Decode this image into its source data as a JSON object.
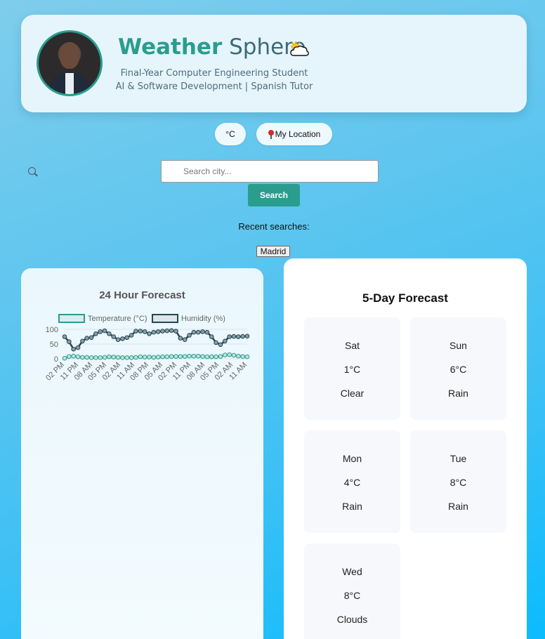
{
  "header": {
    "title_bold": "Weather",
    "title_light": "Sphere",
    "subtitle_line1": "Final-Year Computer Engineering Student",
    "subtitle_line2": "AI & Software Development | Spanish Tutor"
  },
  "controls": {
    "unit_label": "°C",
    "location_label": "My Location"
  },
  "search": {
    "placeholder": "Search city...",
    "button_label": "Search"
  },
  "recent": {
    "label": "Recent searches:",
    "items": [
      "Madrid"
    ]
  },
  "hourly": {
    "title": "24 Hour Forecast"
  },
  "chart_data": {
    "type": "line",
    "title": "24 Hour Forecast",
    "x_tick_labels": [
      "02 PM",
      "11 PM",
      "08 AM",
      "05 PM",
      "02 AM",
      "11 AM",
      "08 PM",
      "05 AM",
      "02 PM",
      "11 PM",
      "08 AM",
      "05 PM",
      "02 AM",
      "11 AM"
    ],
    "ylim": [
      0,
      100
    ],
    "y_ticks": [
      0,
      50,
      100
    ],
    "legend_position": "top",
    "grid": true,
    "series": [
      {
        "name": "Temperature (°C)",
        "color": "#2a9d8f",
        "values": [
          2,
          8,
          9,
          7,
          5,
          5,
          4,
          4,
          4,
          5,
          7,
          6,
          5,
          4,
          4,
          4,
          5,
          7,
          6,
          6,
          5,
          6,
          7,
          7,
          8,
          8,
          8,
          8,
          9,
          9,
          9,
          8,
          7,
          7,
          7,
          8,
          13,
          14,
          12,
          9,
          8,
          7
        ]
      },
      {
        "name": "Humidity (%)",
        "color": "#264653",
        "values": [
          75,
          58,
          33,
          38,
          60,
          70,
          72,
          85,
          92,
          95,
          85,
          75,
          65,
          68,
          72,
          80,
          94,
          94,
          92,
          85,
          90,
          92,
          94,
          95,
          96,
          94,
          70,
          65,
          80,
          90,
          90,
          92,
          90,
          75,
          55,
          48,
          60,
          75,
          76,
          75,
          76,
          77
        ]
      }
    ]
  },
  "forecast": {
    "title": "5-Day Forecast",
    "days": [
      {
        "day": "Sat",
        "temp": "1°C",
        "cond": "Clear"
      },
      {
        "day": "Sun",
        "temp": "6°C",
        "cond": "Rain"
      },
      {
        "day": "Mon",
        "temp": "4°C",
        "cond": "Rain"
      },
      {
        "day": "Tue",
        "temp": "8°C",
        "cond": "Rain"
      },
      {
        "day": "Wed",
        "temp": "8°C",
        "cond": "Clouds"
      }
    ]
  },
  "icons": {
    "weather_icon": "sun-behind-cloud-icon",
    "location_icon": "pin-icon",
    "search_icon": "search-icon"
  },
  "colors": {
    "accent": "#2a9d8f",
    "dark_series": "#264653"
  }
}
